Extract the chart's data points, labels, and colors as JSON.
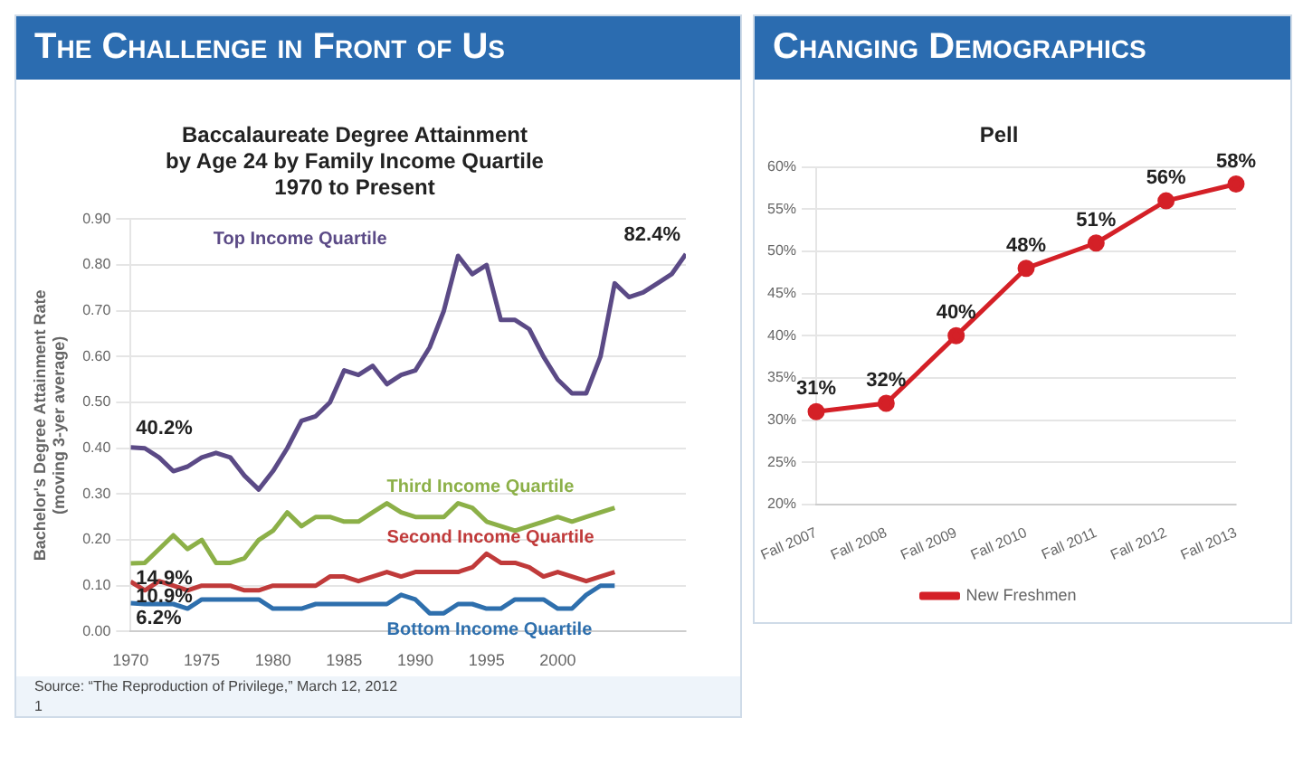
{
  "chart_data": [
    {
      "type": "line",
      "title": "The Challenge in Front of Us",
      "subtitle": "Baccalaureate Degree Attainment\nby Age 24 by Family Income Quartile\n1970 to Present",
      "ylabel": "Bachelor's Degree Attainment Rate\n(moving 3-yer average)",
      "x": [
        1970,
        1971,
        1972,
        1973,
        1974,
        1975,
        1976,
        1977,
        1978,
        1979,
        1980,
        1981,
        1982,
        1983,
        1984,
        1985,
        1986,
        1987,
        1988,
        1989,
        1990,
        1991,
        1992,
        1993,
        1994,
        1995,
        1996,
        1997,
        1998,
        1999,
        2000,
        2001,
        2002,
        2003,
        2004,
        2005,
        2006,
        2007,
        2008,
        2009
      ],
      "series": [
        {
          "name": "Top Income Quartile",
          "color": "#5b4a86",
          "values": [
            0.402,
            0.4,
            0.38,
            0.35,
            0.36,
            0.38,
            0.39,
            0.38,
            0.34,
            0.31,
            0.35,
            0.4,
            0.46,
            0.47,
            0.5,
            0.57,
            0.56,
            0.58,
            0.54,
            0.56,
            0.57,
            0.62,
            0.7,
            0.82,
            0.78,
            0.8,
            0.68,
            0.68,
            0.66,
            0.6,
            0.55,
            0.52,
            0.52,
            0.6,
            0.76,
            0.73,
            0.74,
            0.76,
            0.78,
            0.824
          ],
          "value_labels": [
            "40.2%",
            null,
            null,
            null,
            null,
            null,
            null,
            null,
            null,
            null,
            null,
            null,
            null,
            null,
            null,
            null,
            null,
            null,
            null,
            null,
            null,
            null,
            null,
            null,
            null,
            null,
            null,
            null,
            null,
            null,
            null,
            null,
            null,
            null,
            null,
            null,
            null,
            null,
            null,
            "82.4%"
          ]
        },
        {
          "name": "Third Income Quartile",
          "color": "#8cb048",
          "values": [
            0.149,
            0.15,
            0.18,
            0.21,
            0.18,
            0.2,
            0.15,
            0.15,
            0.16,
            0.2,
            0.22,
            0.26,
            0.23,
            0.25,
            0.25,
            0.24,
            0.24,
            0.26,
            0.28,
            0.26,
            0.25,
            0.25,
            0.25,
            0.28,
            0.27,
            0.24,
            0.23,
            0.22,
            0.23,
            0.24,
            0.25,
            0.24,
            0.25,
            0.26,
            0.27,
            null,
            null,
            null,
            null,
            null
          ],
          "value_labels": [
            "14.9%",
            null,
            null,
            null,
            null,
            null,
            null,
            null,
            null,
            null,
            null,
            null,
            null,
            null,
            null,
            null,
            null,
            null,
            null,
            null,
            null,
            null,
            null,
            null,
            null,
            null,
            null,
            null,
            null,
            null,
            null,
            null,
            null,
            null,
            null,
            null,
            null,
            null,
            null,
            null
          ]
        },
        {
          "name": "Second Income Quartile",
          "color": "#c03a3a",
          "values": [
            0.109,
            0.09,
            0.11,
            0.1,
            0.09,
            0.1,
            0.1,
            0.1,
            0.09,
            0.09,
            0.1,
            0.1,
            0.1,
            0.1,
            0.12,
            0.12,
            0.11,
            0.12,
            0.13,
            0.12,
            0.13,
            0.13,
            0.13,
            0.13,
            0.14,
            0.17,
            0.15,
            0.15,
            0.14,
            0.12,
            0.13,
            0.12,
            0.11,
            0.12,
            0.13,
            null,
            null,
            null,
            null,
            null
          ],
          "value_labels": [
            "10.9%",
            null,
            null,
            null,
            null,
            null,
            null,
            null,
            null,
            null,
            null,
            null,
            null,
            null,
            null,
            null,
            null,
            null,
            null,
            null,
            null,
            null,
            null,
            null,
            null,
            null,
            null,
            null,
            null,
            null,
            null,
            null,
            null,
            null,
            null,
            null,
            null,
            null,
            null,
            null
          ]
        },
        {
          "name": "Bottom Income Quartile",
          "color": "#2e6fad",
          "values": [
            0.062,
            0.06,
            0.06,
            0.06,
            0.05,
            0.07,
            0.07,
            0.07,
            0.07,
            0.07,
            0.05,
            0.05,
            0.05,
            0.06,
            0.06,
            0.06,
            0.06,
            0.06,
            0.06,
            0.08,
            0.07,
            0.04,
            0.04,
            0.06,
            0.06,
            0.05,
            0.05,
            0.07,
            0.07,
            0.07,
            0.05,
            0.05,
            0.08,
            0.1,
            0.1,
            null,
            null,
            null,
            null,
            null
          ],
          "value_labels": [
            "6.2%",
            null,
            null,
            null,
            null,
            null,
            null,
            null,
            null,
            null,
            null,
            null,
            null,
            null,
            null,
            null,
            null,
            null,
            null,
            null,
            null,
            null,
            null,
            null,
            null,
            null,
            null,
            null,
            null,
            null,
            null,
            null,
            null,
            null,
            null,
            null,
            null,
            null,
            null,
            null
          ]
        }
      ],
      "xlim": [
        1970,
        2009
      ],
      "xticks": [
        1970,
        1975,
        1980,
        1985,
        1990,
        1995,
        2000
      ],
      "ylim": [
        0,
        0.9
      ],
      "yticks": [
        {
          "value": 0,
          "label": "0.00"
        },
        {
          "value": 0.1,
          "label": "0.10"
        },
        {
          "value": 0.2,
          "label": "0.20"
        },
        {
          "value": 0.3,
          "label": "0.30"
        },
        {
          "value": 0.4,
          "label": "0.40"
        },
        {
          "value": 0.5,
          "label": "0.50"
        },
        {
          "value": 0.6,
          "label": "0.60"
        },
        {
          "value": 0.7,
          "label": "0.70"
        },
        {
          "value": 0.8,
          "label": "0.80"
        },
        {
          "value": 0.9,
          "label": "0.90"
        }
      ],
      "grid": "y",
      "marker": "none",
      "line_style": "solid",
      "annotations": [
        "Source: “The Reproduction of Privilege,” March 12, 2012",
        "1"
      ]
    },
    {
      "type": "line",
      "title": "Changing Demographics",
      "subtitle": "Pell",
      "categories": [
        "Fall 2007",
        "Fall 2008",
        "Fall 2009",
        "Fall 2010",
        "Fall 2011",
        "Fall 2012",
        "Fall 2013"
      ],
      "series": [
        {
          "name": "New Freshmen",
          "color": "#d42027",
          "values": [
            31,
            32,
            40,
            48,
            51,
            56,
            58
          ],
          "value_labels": [
            "31%",
            "32%",
            "40%",
            "48%",
            "51%",
            "56%",
            "58%"
          ]
        }
      ],
      "ylim": [
        20,
        60
      ],
      "yticks": [
        {
          "value": 20,
          "label": "20%"
        },
        {
          "value": 25,
          "label": "25%"
        },
        {
          "value": 30,
          "label": "30%"
        },
        {
          "value": 35,
          "label": "35%"
        },
        {
          "value": 40,
          "label": "40%"
        },
        {
          "value": 45,
          "label": "45%"
        },
        {
          "value": 50,
          "label": "50%"
        },
        {
          "value": 55,
          "label": "55%"
        },
        {
          "value": 60,
          "label": "60%"
        }
      ],
      "grid": "y",
      "legend": "bottom",
      "marker": "circle",
      "line_style": "solid"
    }
  ]
}
